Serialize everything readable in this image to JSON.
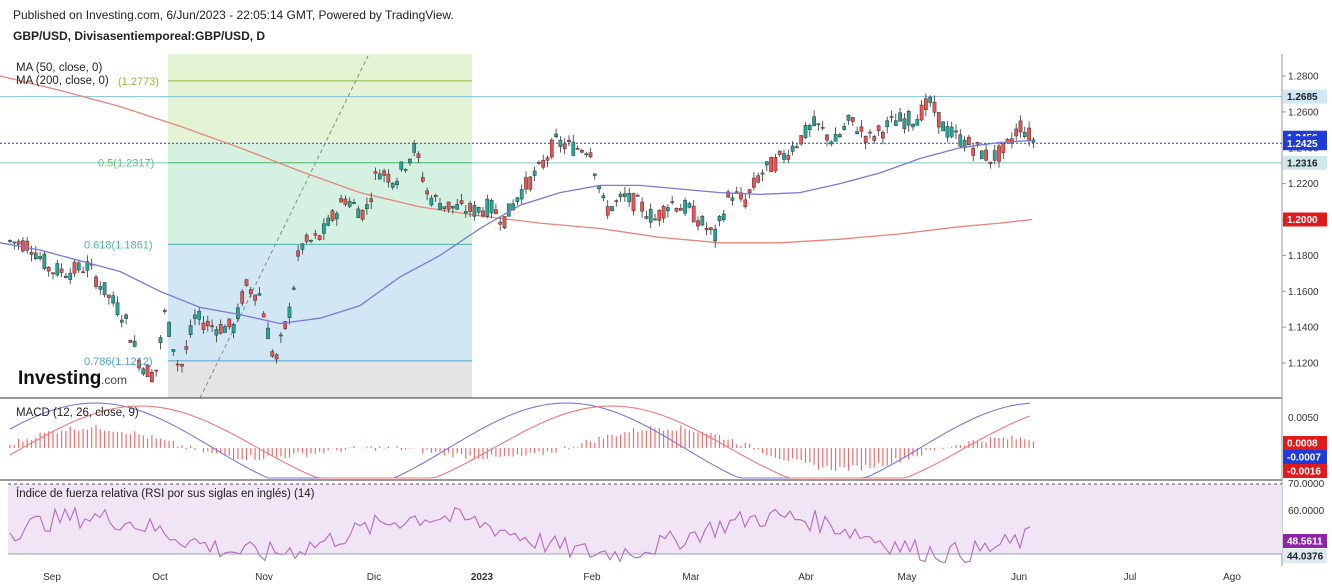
{
  "header": {
    "published": "Published on Investing.com, 6/Jun/2023 - 22:05:14 GMT, Powered by TradingView.",
    "symbol": "GBP/USD, Divisasentiemporeal:GBP/USD, D"
  },
  "legend": {
    "ma50": "MA (50, close, 0)",
    "ma200": "MA (200, close, 0)"
  },
  "logo": {
    "main": "Investing",
    "suffix": ".com"
  },
  "colors": {
    "up": "#26a69a",
    "down": "#ef5350",
    "ma50": "#7b78d8",
    "ma200": "#e8847a",
    "macd": "#7b78d8",
    "signal": "#ef7a7a",
    "rsi": "#b36bc7"
  },
  "chart_data": [
    {
      "type": "candlestick",
      "title": "GBP/USD, Divisasentiemporeal:GBP/USD, D",
      "x_ticks": [
        "Sep",
        "Oct",
        "Nov",
        "Dic",
        "2023",
        "Feb",
        "Mar",
        "Abr",
        "May",
        "Jun",
        "Jul",
        "Ago"
      ],
      "y_ticks": [
        "1.2800",
        "1.2600",
        "1.2400",
        "1.2200",
        "1.2000",
        "1.1800",
        "1.1600",
        "1.1400",
        "1.1200"
      ],
      "ylim": [
        1.1,
        1.3
      ],
      "price_tags": [
        {
          "label": "1.2685",
          "value": 1.2685,
          "bg": "#cfe8f3",
          "fg": "#222"
        },
        {
          "label": "1.2456",
          "value": 1.2456,
          "bg": "#1f3bd8",
          "fg": "#fff"
        },
        {
          "label": "1.2425",
          "value": 1.2425,
          "bg": "#1f3bd8",
          "fg": "#fff"
        },
        {
          "label": "1.2316",
          "value": 1.2316,
          "bg": "#cfe8ec",
          "fg": "#222"
        },
        {
          "label": "1.2000",
          "value": 1.2,
          "bg": "#e01b1b",
          "fg": "#fff"
        }
      ],
      "fib_levels": [
        {
          "label": "(1.2773)",
          "value": 1.2773,
          "color": "#8fbf3a"
        },
        {
          "label": "0.5(1.2317)",
          "value": 1.2317,
          "color": "#5fbf7a"
        },
        {
          "label": "0.618(1.1861)",
          "value": 1.1861,
          "color": "#4fb3a8"
        },
        {
          "label": "0.786(1.1212)",
          "value": 1.1212,
          "color": "#4aa3d0"
        }
      ],
      "ma50": [
        [
          0,
          1.187
        ],
        [
          40,
          1.183
        ],
        [
          80,
          1.177
        ],
        [
          120,
          1.171
        ],
        [
          160,
          1.16
        ],
        [
          200,
          1.151
        ],
        [
          240,
          1.147
        ],
        [
          280,
          1.142
        ],
        [
          320,
          1.145
        ],
        [
          360,
          1.152
        ],
        [
          400,
          1.168
        ],
        [
          440,
          1.18
        ],
        [
          480,
          1.195
        ],
        [
          520,
          1.208
        ],
        [
          560,
          1.215
        ],
        [
          600,
          1.219
        ],
        [
          640,
          1.219
        ],
        [
          680,
          1.217
        ],
        [
          720,
          1.215
        ],
        [
          760,
          1.214
        ],
        [
          800,
          1.215
        ],
        [
          840,
          1.22
        ],
        [
          880,
          1.226
        ],
        [
          920,
          1.234
        ],
        [
          960,
          1.24
        ],
        [
          1000,
          1.243
        ],
        [
          1030,
          1.244
        ]
      ],
      "ma200": [
        [
          0,
          1.28
        ],
        [
          60,
          1.272
        ],
        [
          120,
          1.263
        ],
        [
          180,
          1.252
        ],
        [
          240,
          1.24
        ],
        [
          300,
          1.227
        ],
        [
          360,
          1.215
        ],
        [
          420,
          1.207
        ],
        [
          480,
          1.202
        ],
        [
          540,
          1.198
        ],
        [
          600,
          1.195
        ],
        [
          660,
          1.19
        ],
        [
          720,
          1.187
        ],
        [
          780,
          1.187
        ],
        [
          840,
          1.189
        ],
        [
          900,
          1.192
        ],
        [
          960,
          1.196
        ],
        [
          1000,
          1.198
        ],
        [
          1032,
          1.2
        ]
      ]
    },
    {
      "type": "macd",
      "title": "MACD (12, 26, close, 9)",
      "y_ticks": [
        "0.0050"
      ],
      "tags": [
        {
          "label": "0.0008",
          "bg": "#e01b1b"
        },
        {
          "label": "-0.0007",
          "bg": "#1f3bd8"
        },
        {
          "label": "-0.0016",
          "bg": "#e01b1b"
        }
      ]
    },
    {
      "type": "rsi",
      "title": "Índice de fuerza relativa (RSI por sus siglas en inglés) (14)",
      "y_ticks": [
        "70.0000",
        "60.0000"
      ],
      "tags": [
        {
          "label": "48.5611",
          "bg": "#8e24aa"
        },
        {
          "label": "44.0376",
          "bg": "#dfe9f0"
        }
      ]
    }
  ]
}
